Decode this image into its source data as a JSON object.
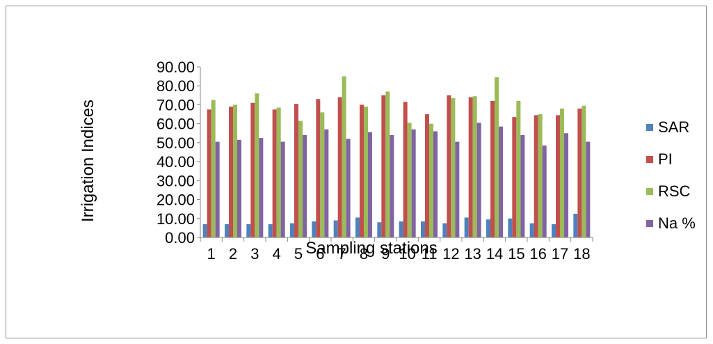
{
  "chart_data": {
    "type": "bar",
    "title": "",
    "xlabel": "Sampling stations",
    "ylabel": "Irrigation  Indices",
    "ylim": [
      0,
      90
    ],
    "yticks": [
      "0.00",
      "10.00",
      "20.00",
      "30.00",
      "40.00",
      "50.00",
      "60.00",
      "70.00",
      "80.00",
      "90.00"
    ],
    "categories": [
      "1",
      "2",
      "3",
      "4",
      "5",
      "6",
      "7",
      "8",
      "9",
      "10",
      "11",
      "12",
      "13",
      "14",
      "15",
      "16",
      "17",
      "18"
    ],
    "grid": false,
    "legend_position": "right",
    "series": [
      {
        "name": "SAR",
        "color": "#4f81bd",
        "values": [
          7.0,
          7.0,
          7.0,
          7.0,
          7.5,
          8.5,
          9.0,
          10.5,
          8.0,
          8.5,
          8.5,
          7.5,
          10.5,
          9.5,
          10.0,
          7.5,
          7.0,
          12.5
        ]
      },
      {
        "name": "PI",
        "color": "#c0504d",
        "values": [
          67.5,
          69.0,
          71.0,
          67.5,
          70.5,
          73.0,
          74.0,
          70.0,
          75.0,
          71.5,
          65.0,
          75.0,
          74.0,
          72.0,
          63.5,
          64.5,
          64.5,
          68.0
        ]
      },
      {
        "name": "RSC",
        "color": "#9bbb59",
        "values": [
          72.5,
          70.0,
          76.0,
          68.5,
          61.5,
          66.0,
          85.0,
          69.0,
          77.0,
          60.5,
          60.0,
          73.5,
          74.5,
          84.5,
          72.0,
          65.0,
          68.0,
          69.5
        ]
      },
      {
        "name": "Na %",
        "color": "#8064a2",
        "values": [
          50.5,
          51.5,
          52.5,
          50.5,
          54.0,
          57.0,
          52.0,
          55.5,
          54.0,
          57.0,
          56.0,
          50.5,
          60.5,
          58.5,
          54.0,
          48.5,
          55.0,
          50.5
        ]
      }
    ]
  }
}
